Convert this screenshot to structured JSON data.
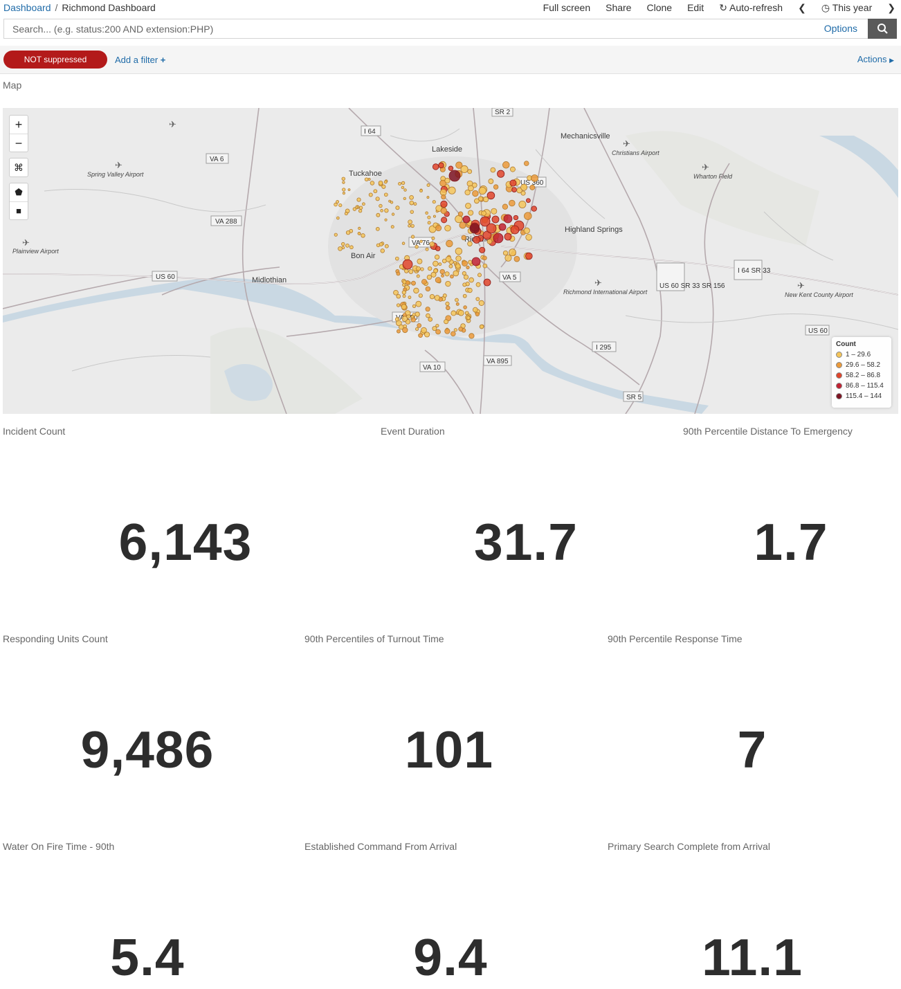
{
  "breadcrumb": {
    "root": "Dashboard",
    "separator": "/",
    "current": "Richmond Dashboard"
  },
  "nav": {
    "full_screen": "Full screen",
    "share": "Share",
    "clone": "Clone",
    "edit": "Edit",
    "auto_refresh": "Auto-refresh",
    "time_range": "This year"
  },
  "search": {
    "placeholder": "Search... (e.g. status:200 AND extension:PHP)",
    "options": "Options"
  },
  "filters": {
    "pill": "NOT suppressed",
    "add": "Add a filter",
    "actions": "Actions"
  },
  "map": {
    "title": "Map",
    "legend": {
      "title": "Count",
      "items": [
        {
          "label": "1 – 29.6",
          "color": "#f5c55a"
        },
        {
          "label": "29.6 – 58.2",
          "color": "#ec9a3a"
        },
        {
          "label": "58.2 – 86.8",
          "color": "#e0452c"
        },
        {
          "label": "86.8 – 115.4",
          "color": "#c22233"
        },
        {
          "label": "115.4 – 144",
          "color": "#7d1322"
        }
      ]
    },
    "places": [
      "Lakeside",
      "Mechanicsville",
      "Tuckahoe",
      "Spring Valley Airport",
      "Christians Airport",
      "Wharton Field",
      "Highland Springs",
      "Bon Air",
      "Midlothian",
      "Plainview Airport",
      "Richmond International Airport",
      "New Kent County Airport",
      "Richmond"
    ],
    "roads": [
      "VA 6",
      "I 64",
      "SR 2",
      "VA 288",
      "US 360",
      "VA 76",
      "US 60",
      "VA 5",
      "US 60 SR 33 SR 156",
      "I 64 SR 33",
      "VA 150",
      "VA 895",
      "I 295",
      "VA 10",
      "SR 5",
      "US 60"
    ]
  },
  "metrics": [
    {
      "title": "Incident Count",
      "value": "6,143"
    },
    {
      "title": "Event Duration",
      "value": "31.7"
    },
    {
      "title": "90th Percentile Distance To Emergency",
      "value": "1.7"
    },
    {
      "title": "Responding Units Count",
      "value": "9,486"
    },
    {
      "title": "90th Percentiles of Turnout Time",
      "value": "101"
    },
    {
      "title": "90th Percentile Response Time",
      "value": "7"
    },
    {
      "title": "Water On Fire Time - 90th",
      "value": "5.4"
    },
    {
      "title": "Established Command From Arrival",
      "value": "9.4"
    },
    {
      "title": "Primary Search Complete from Arrival",
      "value": "11.1"
    }
  ]
}
